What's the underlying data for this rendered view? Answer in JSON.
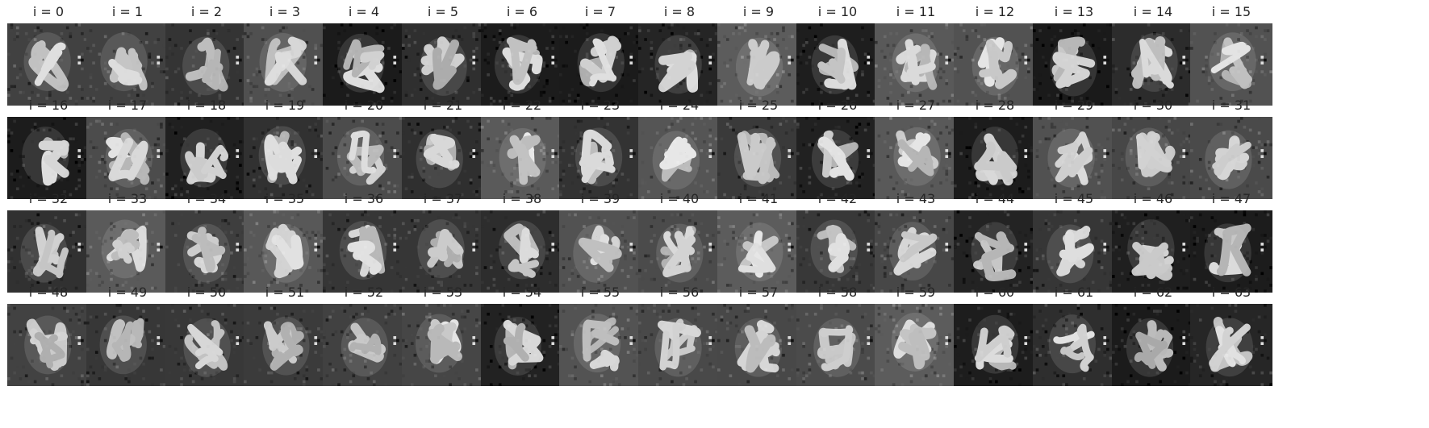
{
  "figure": {
    "panel_titles": [
      "i = 0",
      "i = 1",
      "i = 2",
      "i = 3",
      "i = 4",
      "i = 5",
      "i = 6",
      "i = 7",
      "i = 8",
      "i = 9",
      "i = 10",
      "i = 11",
      "i = 12",
      "i = 13",
      "i = 14",
      "i = 15",
      "i = 16",
      "i = 17",
      "i = 18",
      "i = 19",
      "i = 20",
      "i = 21",
      "i = 22",
      "i = 23",
      "i = 24",
      "i = 25",
      "i = 26",
      "i = 27",
      "i = 28",
      "i = 29",
      "i = 30",
      "i = 31",
      "i = 32",
      "i = 33",
      "i = 34",
      "i = 35",
      "i = 36",
      "i = 37",
      "i = 38",
      "i = 39",
      "i = 40",
      "i = 41",
      "i = 42",
      "i = 43",
      "i = 44",
      "i = 45",
      "i = 46",
      "i = 47",
      "i = 48",
      "i = 49",
      "i = 50",
      "i = 51",
      "i = 52",
      "i = 53",
      "i = 54",
      "i = 55",
      "i = 56",
      "i = 57",
      "i = 58",
      "i = 59",
      "i = 60",
      "i = 61",
      "i = 62",
      "i = 63"
    ],
    "rows": 4,
    "columns": 16,
    "image_style": "grayscale blurry handwritten-digit-like samples",
    "background_color": "#ffffff",
    "title_color": "#262626"
  }
}
